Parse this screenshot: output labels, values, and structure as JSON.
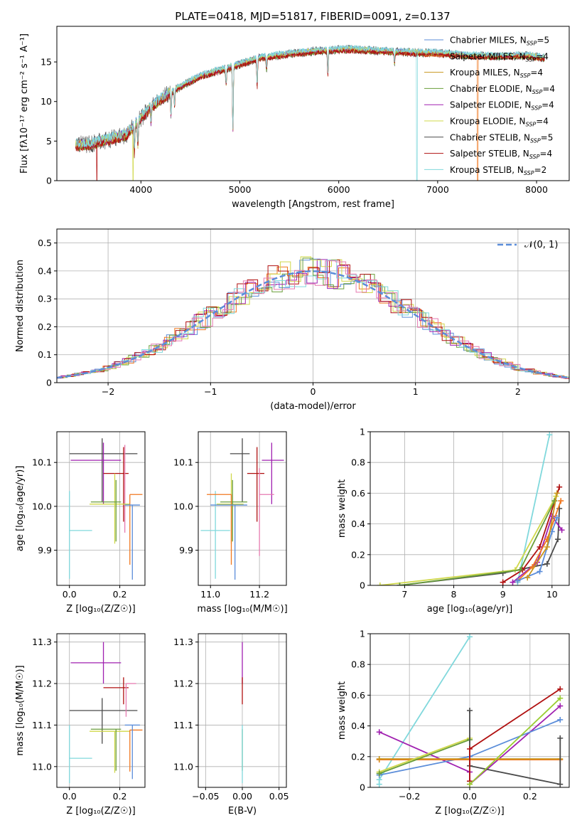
{
  "figure_title": "PLATE=0418, MJD=51817, FIBERID=0091, z=0.137",
  "colors": {
    "Chabrier MILES": "#5b8dd9",
    "Salpeter MILES": "#f07820",
    "Kroupa MILES": "#c8961e",
    "Chabrier ELODIE": "#6a9e3a",
    "Salpeter ELODIE": "#a020b0",
    "Kroupa ELODIE": "#d0d84a",
    "Chabrier STELIB": "#4a4a4a",
    "Salpeter STELIB": "#b01010",
    "Kroupa STELIB": "#80d8dc",
    "normal": "#5b8dd9",
    "pink": "#e67ab0",
    "lime": "#9acd32"
  },
  "chart_data": [
    {
      "id": "spectrum",
      "type": "line",
      "title": "PLATE=0418, MJD=51817, FIBERID=0091, z=0.137",
      "xlabel": "wavelength [Angstrom, rest frame]",
      "ylabel": "Flux [fλ10⁻¹⁷ erg cm⁻² s⁻¹ A⁻¹]",
      "xlim": [
        3150,
        8330
      ],
      "ylim": [
        0,
        19.5
      ],
      "xticks": [
        4000,
        5000,
        6000,
        7000,
        8000
      ],
      "yticks": [
        0,
        5,
        10,
        15
      ],
      "grid": false,
      "legend": "right",
      "continuum": {
        "x": [
          3340,
          3500,
          3700,
          3850,
          3950,
          4100,
          4300,
          4600,
          4900,
          5200,
          5500,
          5800,
          6100,
          6400,
          6700,
          7000,
          7300,
          7600,
          7900,
          8080
        ],
        "y": [
          4.5,
          4.6,
          5.3,
          5.8,
          7.2,
          9.3,
          11.2,
          13.2,
          14.3,
          15.5,
          16.0,
          16.4,
          16.6,
          16.4,
          16.2,
          16.1,
          15.8,
          15.7,
          15.8,
          15.5
        ]
      },
      "absorption_lines": [
        {
          "x": 3934,
          "depth": 3.5
        },
        {
          "x": 3969,
          "depth": 3.0
        },
        {
          "x": 4102,
          "depth": 2.0
        },
        {
          "x": 4304,
          "depth": 3.0
        },
        {
          "x": 4340,
          "depth": 2.0
        },
        {
          "x": 4861,
          "depth": 2.0
        },
        {
          "x": 4930,
          "depth": 8.0
        },
        {
          "x": 5175,
          "depth": 3.5
        },
        {
          "x": 5270,
          "depth": 1.5
        },
        {
          "x": 5890,
          "depth": 3.0
        },
        {
          "x": 6563,
          "depth": 1.5
        }
      ],
      "series": [
        {
          "name": "Chabrier MILES, N_SSP=5",
          "offset": 0.15
        },
        {
          "name": "Salpeter MILES, N_SSP=4",
          "offset": 0.0,
          "drop_at": 7405
        },
        {
          "name": "Kroupa MILES, N_SSP=4",
          "offset": -0.1
        },
        {
          "name": "Chabrier ELODIE, N_SSP=4",
          "offset": -0.15
        },
        {
          "name": "Salpeter ELODIE, N_SSP=4",
          "offset": 0.05
        },
        {
          "name": "Kroupa ELODIE, N_SSP=4",
          "offset": 0.1,
          "drop_at": 3920
        },
        {
          "name": "Chabrier STELIB, N_SSP=5",
          "offset": 0.0
        },
        {
          "name": "Salpeter STELIB, N_SSP=4",
          "offset": -0.2,
          "drop_at": 3555
        },
        {
          "name": "Kroupa STELIB, N_SSP=2",
          "offset": 0.25,
          "drop_at": 6790
        }
      ]
    },
    {
      "id": "residuals",
      "type": "histogram",
      "xlabel": "(data-model)/error",
      "ylabel": "Normed distribution",
      "xlim": [
        -2.5,
        2.5
      ],
      "ylim": [
        0,
        0.55
      ],
      "xticks": [
        -2,
        -1,
        0,
        1,
        2
      ],
      "yticks": [
        0.0,
        0.1,
        0.2,
        0.3,
        0.4,
        0.5
      ],
      "grid": true,
      "legend": "top-right",
      "reference": {
        "name": "𝒩(0, 1)",
        "mean": 0,
        "sigma": 1
      },
      "bin_width": 0.1,
      "histograms": [
        {
          "color_key": "Chabrier MILES",
          "phase": 0.03
        },
        {
          "color_key": "Salpeter MILES",
          "phase": 0.05
        },
        {
          "color_key": "Chabrier ELODIE",
          "phase": 0.0
        },
        {
          "color_key": "Salpeter ELODIE",
          "phase": 0.06
        },
        {
          "color_key": "Kroupa ELODIE",
          "phase": 0.02
        },
        {
          "color_key": "Salpeter STELIB",
          "phase": 0.04
        },
        {
          "color_key": "Kroupa STELIB",
          "phase": 0.07
        },
        {
          "color_key": "pink",
          "phase": 0.08
        }
      ]
    },
    {
      "id": "age_vs_Z",
      "type": "errorbar",
      "xlabel": "Z [log₁₀(Z/Z☉)]",
      "ylabel": "age  [log₁₀(age/yr)]",
      "xlim": [
        -0.05,
        0.3
      ],
      "ylim": [
        9.82,
        10.17
      ],
      "xticks": [
        0.0,
        0.2
      ],
      "xticklabels": [
        "0.0",
        "0.2"
      ],
      "yticks": [
        9.9,
        10.0,
        10.1
      ],
      "yticklabels": [
        "9.9",
        "10.0",
        "10.1"
      ],
      "grid": true,
      "points": [
        {
          "color_key": "Kroupa STELIB",
          "x": 0.0,
          "xerr": [
            0.0,
            0.09
          ],
          "y": 9.945,
          "yerr": [
            0.11,
            0.09
          ]
        },
        {
          "color_key": "Chabrier STELIB",
          "x": 0.13,
          "xerr": [
            0.13,
            0.14
          ],
          "y": 10.12,
          "yerr": [
            0.11,
            0.035
          ]
        },
        {
          "color_key": "Salpeter ELODIE",
          "x": 0.135,
          "xerr": [
            0.13,
            0.07
          ],
          "y": 10.105,
          "yerr": [
            0.1,
            0.04
          ]
        },
        {
          "color_key": "Salpeter STELIB",
          "x": 0.215,
          "xerr": [
            0.08,
            0.02
          ],
          "y": 10.075,
          "yerr": [
            0.11,
            0.06
          ]
        },
        {
          "color_key": "pink",
          "x": 0.22,
          "xerr": [
            0.0,
            0.0
          ],
          "y": 10.08,
          "yerr": [
            0.14,
            0.06
          ]
        },
        {
          "color_key": "Kroupa ELODIE",
          "x": 0.18,
          "xerr": [
            0.1,
            0.06
          ],
          "y": 10.005,
          "yerr": [
            0.09,
            0.07
          ]
        },
        {
          "color_key": "Chabrier ELODIE",
          "x": 0.185,
          "xerr": [
            0.1,
            0.02
          ],
          "y": 10.01,
          "yerr": [
            0.09,
            0.05
          ]
        },
        {
          "color_key": "Salpeter MILES",
          "x": 0.24,
          "xerr": [
            0.0,
            0.05
          ],
          "y": 10.027,
          "yerr": [
            0.16,
            0.0
          ]
        },
        {
          "color_key": "Chabrier MILES",
          "x": 0.25,
          "xerr": [
            0.03,
            0.03
          ],
          "y": 10.003,
          "yerr": [
            0.17,
            0.0
          ]
        }
      ]
    },
    {
      "id": "age_vs_mass",
      "type": "errorbar",
      "xlabel": "mass [log₁₀(M/M☉)]",
      "ylabel": "",
      "xlim": [
        10.95,
        11.31
      ],
      "ylim": [
        9.82,
        10.17
      ],
      "xticks": [
        11.0,
        11.2
      ],
      "xticklabels": [
        "11.0",
        "11.2"
      ],
      "yticks": [
        9.9,
        10.0,
        10.1
      ],
      "yticklabels": [
        "9.9",
        "10.0",
        "10.1"
      ],
      "grid": true,
      "points": [
        {
          "color_key": "Kroupa STELIB",
          "x": 11.02,
          "xerr": [
            0.06,
            0.06
          ],
          "y": 9.945,
          "yerr": [
            0.11,
            0.09
          ]
        },
        {
          "color_key": "Chabrier STELIB",
          "x": 11.13,
          "xerr": [
            0.05,
            0.03
          ],
          "y": 10.12,
          "yerr": [
            0.11,
            0.035
          ]
        },
        {
          "color_key": "Salpeter ELODIE",
          "x": 11.25,
          "xerr": [
            0.04,
            0.05
          ],
          "y": 10.105,
          "yerr": [
            0.1,
            0.04
          ]
        },
        {
          "color_key": "Salpeter STELIB",
          "x": 11.19,
          "xerr": [
            0.04,
            0.03
          ],
          "y": 10.075,
          "yerr": [
            0.11,
            0.06
          ]
        },
        {
          "color_key": "pink",
          "x": 11.2,
          "xerr": [
            0.0,
            0.06
          ],
          "y": 10.027,
          "yerr": [
            0.14,
            0.06
          ]
        },
        {
          "color_key": "Kroupa ELODIE",
          "x": 11.085,
          "xerr": [
            0.06,
            0.05
          ],
          "y": 10.005,
          "yerr": [
            0.09,
            0.07
          ]
        },
        {
          "color_key": "Chabrier ELODIE",
          "x": 11.09,
          "xerr": [
            0.05,
            0.06
          ],
          "y": 10.01,
          "yerr": [
            0.09,
            0.05
          ]
        },
        {
          "color_key": "Salpeter MILES",
          "x": 11.085,
          "xerr": [
            0.1,
            0.0
          ],
          "y": 10.027,
          "yerr": [
            0.16,
            0.0
          ]
        },
        {
          "color_key": "Chabrier MILES",
          "x": 11.1,
          "xerr": [
            0.1,
            0.05
          ],
          "y": 10.003,
          "yerr": [
            0.17,
            0.0
          ]
        }
      ]
    },
    {
      "id": "mass_weight_vs_age",
      "type": "line",
      "xlabel": "age  [log₁₀(age/yr)]",
      "ylabel": "mass weight",
      "xlim": [
        6.3,
        10.35
      ],
      "ylim": [
        0,
        1.0
      ],
      "xticks": [
        7,
        8,
        9,
        10
      ],
      "yticks": [
        0.0,
        0.2,
        0.4,
        0.6,
        0.8,
        1.0
      ],
      "grid": true,
      "series": [
        {
          "color_key": "Kroupa STELIB",
          "x": [
            9.3,
            9.95
          ],
          "y": [
            0.02,
            0.98
          ]
        },
        {
          "color_key": "Chabrier STELIB",
          "x": [
            6.9,
            9.0,
            9.9,
            10.12,
            10.15
          ],
          "y": [
            0.0,
            0.08,
            0.14,
            0.3,
            0.5
          ]
        },
        {
          "color_key": "Salpeter STELIB",
          "x": [
            9.0,
            9.4,
            9.75,
            10.15
          ],
          "y": [
            0.02,
            0.1,
            0.25,
            0.64
          ]
        },
        {
          "color_key": "Salpeter ELODIE",
          "x": [
            9.2,
            9.7,
            10.0,
            10.2
          ],
          "y": [
            0.02,
            0.15,
            0.45,
            0.36
          ]
        },
        {
          "color_key": "Kroupa ELODIE",
          "x": [
            6.5,
            9.25,
            10.08
          ],
          "y": [
            0.0,
            0.1,
            0.58
          ]
        },
        {
          "color_key": "Chabrier ELODIE",
          "x": [
            6.9,
            9.35,
            10.05
          ],
          "y": [
            0.0,
            0.1,
            0.55
          ]
        },
        {
          "color_key": "Salpeter MILES",
          "x": [
            9.3,
            9.6,
            9.9,
            10.18
          ],
          "y": [
            0.03,
            0.12,
            0.3,
            0.55
          ]
        },
        {
          "color_key": "Chabrier MILES",
          "x": [
            9.3,
            9.75,
            10.0,
            10.1
          ],
          "y": [
            0.03,
            0.09,
            0.35,
            0.44
          ]
        },
        {
          "color_key": "Kroupa MILES",
          "x": [
            9.5,
            9.9,
            10.1
          ],
          "y": [
            0.05,
            0.25,
            0.6
          ]
        }
      ]
    },
    {
      "id": "mass_vs_Z",
      "type": "errorbar",
      "xlabel": "Z [log₁₀(Z/Z☉)]",
      "ylabel": "mass [log₁₀(M/M☉)]",
      "xlim": [
        -0.05,
        0.3
      ],
      "ylim": [
        10.95,
        11.32
      ],
      "xticks": [
        0.0,
        0.2
      ],
      "xticklabels": [
        "0.0",
        "0.2"
      ],
      "yticks": [
        11.0,
        11.1,
        11.2,
        11.3
      ],
      "yticklabels": [
        "11.0",
        "11.1",
        "11.2",
        "11.3"
      ],
      "grid": true,
      "points": [
        {
          "color_key": "Kroupa STELIB",
          "x": 0.0,
          "xerr": [
            0.0,
            0.09
          ],
          "y": 11.02,
          "yerr": [
            0.06,
            0.08
          ]
        },
        {
          "color_key": "Chabrier STELIB",
          "x": 0.13,
          "xerr": [
            0.13,
            0.14
          ],
          "y": 11.135,
          "yerr": [
            0.08,
            0.03
          ]
        },
        {
          "color_key": "Salpeter ELODIE",
          "x": 0.135,
          "xerr": [
            0.13,
            0.07
          ],
          "y": 11.25,
          "yerr": [
            0.05,
            0.05
          ]
        },
        {
          "color_key": "Salpeter STELIB",
          "x": 0.215,
          "xerr": [
            0.08,
            0.02
          ],
          "y": 11.19,
          "yerr": [
            0.04,
            0.025
          ]
        },
        {
          "color_key": "pink",
          "x": 0.225,
          "xerr": [
            0.0,
            0.04
          ],
          "y": 11.2,
          "yerr": [
            0.08,
            0.0
          ]
        },
        {
          "color_key": "Kroupa ELODIE",
          "x": 0.18,
          "xerr": [
            0.1,
            0.06
          ],
          "y": 11.085,
          "yerr": [
            0.1,
            0.0
          ]
        },
        {
          "color_key": "Chabrier ELODIE",
          "x": 0.185,
          "xerr": [
            0.1,
            0.02
          ],
          "y": 11.09,
          "yerr": [
            0.1,
            0.0
          ]
        },
        {
          "color_key": "Salpeter MILES",
          "x": 0.24,
          "xerr": [
            0.0,
            0.05
          ],
          "y": 11.088,
          "yerr": [
            0.1,
            0.0
          ]
        },
        {
          "color_key": "Chabrier MILES",
          "x": 0.25,
          "xerr": [
            0.03,
            0.03
          ],
          "y": 11.1,
          "yerr": [
            0.13,
            0.0
          ]
        }
      ]
    },
    {
      "id": "mass_vs_ebv",
      "type": "errorbar",
      "xlabel": "E(B-V)",
      "ylabel": "",
      "xlim": [
        -0.06,
        0.06
      ],
      "ylim": [
        10.95,
        11.32
      ],
      "xticks": [
        -0.05,
        0.0,
        0.05
      ],
      "xticklabels": [
        "−0.05",
        "0.00",
        "0.05"
      ],
      "yticks": [
        11.0,
        11.1,
        11.2,
        11.3
      ],
      "yticklabels": [
        "11.0",
        "11.1",
        "11.2",
        "11.3"
      ],
      "grid": true,
      "points": [
        {
          "color_key": "Salpeter ELODIE",
          "x": 0.0,
          "xerr": [
            0,
            0
          ],
          "y": 11.25,
          "yerr": [
            0.05,
            0.05
          ]
        },
        {
          "color_key": "Salpeter STELIB",
          "x": 0.0,
          "xerr": [
            0,
            0
          ],
          "y": 11.19,
          "yerr": [
            0.04,
            0.025
          ]
        },
        {
          "color_key": "Chabrier ELODIE",
          "x": 0.0,
          "xerr": [
            0,
            0
          ],
          "y": 11.09,
          "yerr": [
            0.1,
            0.0
          ]
        },
        {
          "color_key": "Kroupa STELIB",
          "x": 0.0,
          "xerr": [
            0,
            0
          ],
          "y": 11.02,
          "yerr": [
            0.06,
            0.08
          ]
        }
      ]
    },
    {
      "id": "mass_weight_vs_Z",
      "type": "line",
      "xlabel": "Z [log₁₀(Z/Z☉)]",
      "ylabel": "mass weight",
      "xlim": [
        -0.33,
        0.33
      ],
      "ylim": [
        0,
        1.0
      ],
      "xticks": [
        -0.2,
        0.0,
        0.2
      ],
      "xticklabels": [
        "−0.2",
        "0.0",
        "0.2"
      ],
      "yticks": [
        0.0,
        0.2,
        0.4,
        0.6,
        0.8,
        1.0
      ],
      "grid": true,
      "series": [
        {
          "color_key": "Kroupa STELIB",
          "x": [
            -0.3,
            -0.3,
            0.0
          ],
          "y": [
            0.02,
            0.05,
            0.98
          ]
        },
        {
          "color_key": "Salpeter ELODIE",
          "x": [
            -0.3,
            0.0,
            0.0,
            0.3
          ],
          "y": [
            0.36,
            0.1,
            0.02,
            0.53
          ]
        },
        {
          "color_key": "Chabrier MILES",
          "x": [
            -0.3,
            0.0,
            0.3
          ],
          "y": [
            0.08,
            0.2,
            0.44
          ]
        },
        {
          "color_key": "Salpeter MILES",
          "x": [
            -0.3,
            0.3
          ],
          "y": [
            0.18,
            0.18
          ]
        },
        {
          "color_key": "Kroupa MILES",
          "x": [
            -0.3,
            0.3
          ],
          "y": [
            0.185,
            0.185
          ]
        },
        {
          "color_key": "Kroupa ELODIE",
          "x": [
            -0.3,
            0.0
          ],
          "y": [
            0.1,
            0.32
          ]
        },
        {
          "color_key": "Chabrier ELODIE",
          "x": [
            -0.3,
            0.0
          ],
          "y": [
            0.09,
            0.31
          ]
        },
        {
          "color_key": "Chabrier STELIB",
          "x": [
            0.0,
            0.0,
            0.3,
            0.3
          ],
          "y": [
            0.5,
            0.14,
            0.02,
            0.32
          ]
        },
        {
          "color_key": "Salpeter STELIB",
          "x": [
            0.0,
            0.0,
            0.3
          ],
          "y": [
            0.04,
            0.25,
            0.64
          ]
        },
        {
          "color_key": "lime",
          "x": [
            0.0,
            0.3
          ],
          "y": [
            0.02,
            0.58
          ]
        }
      ]
    }
  ]
}
